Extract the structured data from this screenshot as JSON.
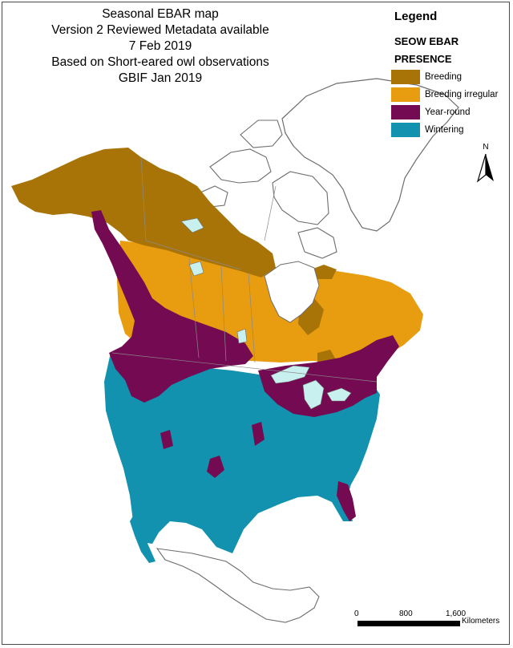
{
  "title_lines": [
    "Seasonal EBAR map",
    "Version 2 Reviewed Metadata available",
    "7 Feb 2019",
    "Based on Short-eared owl observations",
    "GBIF Jan 2019"
  ],
  "legend": {
    "title": "Legend",
    "subtitle_line1": "SEOW EBAR",
    "subtitle_line2": "PRESENCE",
    "items": [
      {
        "label": "Breeding",
        "color": "#a87408"
      },
      {
        "label": "Breeding irregular",
        "color": "#e89c10"
      },
      {
        "label": "Year-round",
        "color": "#740a52"
      },
      {
        "label": "Wintering",
        "color": "#1292ae"
      }
    ]
  },
  "north_arrow": {
    "letter": "N"
  },
  "scale_bar": {
    "ticks": [
      "0",
      "800",
      "1,600"
    ],
    "units": "Kilometers"
  },
  "colors": {
    "lakes": "#c8f0ee",
    "outline": "#6d6d6d",
    "land_other": "#ffffff"
  }
}
